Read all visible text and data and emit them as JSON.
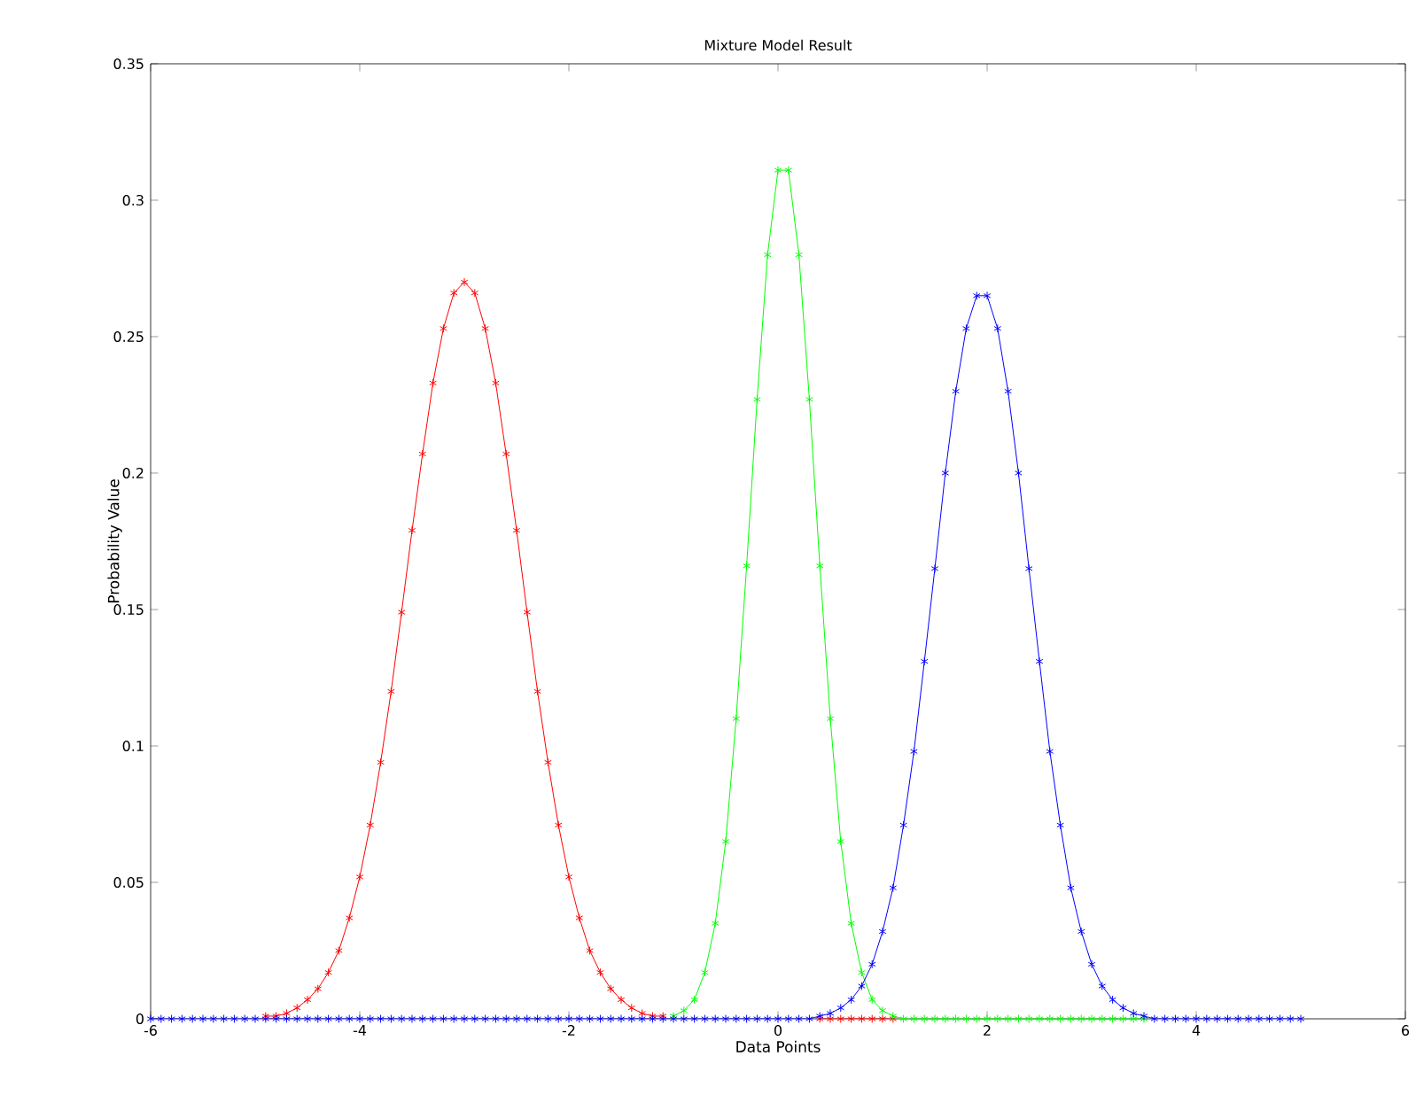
{
  "chart_data": {
    "type": "line",
    "title": "Mixture Model Result",
    "xlabel": "Data Points",
    "ylabel": "Probability Value",
    "x": [
      -6,
      -5.9,
      -5.8,
      -5.7,
      -5.6,
      -5.5,
      -5.4,
      -5.3,
      -5.2,
      -5.1,
      -5,
      -4.9,
      -4.8,
      -4.7,
      -4.6,
      -4.5,
      -4.4,
      -4.3,
      -4.2,
      -4.1,
      -4,
      -3.9,
      -3.8,
      -3.7,
      -3.6,
      -3.5,
      -3.4,
      -3.3,
      -3.2,
      -3.1,
      -3,
      -2.9,
      -2.8,
      -2.7,
      -2.6,
      -2.5,
      -2.4,
      -2.3,
      -2.2,
      -2.1,
      -2,
      -1.9,
      -1.8,
      -1.7,
      -1.6,
      -1.5,
      -1.4,
      -1.3,
      -1.2,
      -1.1,
      -1,
      -0.9,
      -0.8,
      -0.7,
      -0.6,
      -0.5,
      -0.4,
      -0.3,
      -0.2,
      -0.1,
      0,
      0.1,
      0.2,
      0.3,
      0.4,
      0.5,
      0.6,
      0.7,
      0.8,
      0.9,
      1,
      1.1,
      1.2,
      1.3,
      1.4,
      1.5,
      1.6,
      1.7,
      1.8,
      1.9,
      2,
      2.1,
      2.2,
      2.3,
      2.4,
      2.5,
      2.6,
      2.7,
      2.8,
      2.9,
      3,
      3.1,
      3.2,
      3.3,
      3.4,
      3.5,
      3.6,
      3.7,
      3.8,
      3.9,
      4,
      4.1,
      4.2,
      4.3,
      4.4,
      4.5,
      4.6,
      4.7,
      4.8,
      4.9,
      5
    ],
    "series": [
      {
        "color": "#ff0000",
        "values": [
          null,
          null,
          null,
          null,
          null,
          null,
          null,
          null,
          null,
          null,
          null,
          0.001,
          0.001,
          0.002,
          0.004,
          0.007,
          0.011,
          0.017,
          0.025,
          0.037,
          0.052,
          0.071,
          0.094,
          0.12,
          0.149,
          0.179,
          0.207,
          0.233,
          0.253,
          0.266,
          0.27,
          0.266,
          0.253,
          0.233,
          0.207,
          0.179,
          0.149,
          0.12,
          0.094,
          0.071,
          0.052,
          0.037,
          0.025,
          0.017,
          0.011,
          0.007,
          0.004,
          0.002,
          0.001,
          0.001,
          null,
          null,
          null,
          null,
          null,
          null,
          null,
          null,
          null,
          null,
          null,
          null,
          null,
          null,
          0,
          0,
          0,
          0,
          0,
          0,
          0,
          0,
          null,
          null,
          null,
          null,
          null,
          null,
          null,
          null,
          null,
          null,
          null,
          null,
          null,
          null,
          null,
          null,
          null,
          null,
          null,
          null,
          null,
          null,
          null,
          null,
          null,
          null,
          null,
          null,
          null,
          null,
          null,
          null,
          null,
          null,
          null,
          null,
          null,
          null,
          null
        ]
      },
      {
        "color": "#00ff00",
        "values": [
          null,
          null,
          null,
          null,
          null,
          null,
          null,
          null,
          null,
          null,
          null,
          null,
          null,
          null,
          null,
          null,
          null,
          null,
          null,
          null,
          null,
          null,
          null,
          null,
          null,
          null,
          null,
          null,
          null,
          null,
          null,
          null,
          null,
          null,
          null,
          null,
          null,
          null,
          null,
          null,
          null,
          null,
          null,
          null,
          null,
          null,
          null,
          null,
          null,
          null,
          0.001,
          0.003,
          0.007,
          0.017,
          0.035,
          0.065,
          0.11,
          0.166,
          0.227,
          0.28,
          0.311,
          0.311,
          0.28,
          0.227,
          0.166,
          0.11,
          0.065,
          0.035,
          0.017,
          0.007,
          0.003,
          0.001,
          0,
          0,
          0,
          0,
          0,
          0,
          0,
          0,
          0,
          0,
          0,
          0,
          0,
          0,
          0,
          0,
          0,
          0,
          0,
          0,
          0,
          0,
          0,
          0,
          null,
          null,
          null,
          null,
          null,
          null,
          null,
          null,
          null,
          null,
          null,
          null,
          null,
          null,
          null
        ]
      },
      {
        "color": "#0000ff",
        "values": [
          0,
          0,
          0,
          0,
          0,
          0,
          0,
          0,
          0,
          0,
          0,
          0,
          0,
          0,
          0,
          0,
          0,
          0,
          0,
          0,
          0,
          0,
          0,
          0,
          0,
          0,
          0,
          0,
          0,
          0,
          0,
          0,
          0,
          0,
          0,
          0,
          0,
          0,
          0,
          0,
          0,
          0,
          0,
          0,
          0,
          0,
          0,
          0,
          0,
          0,
          0,
          0,
          0,
          0,
          0,
          0,
          0,
          0,
          0,
          0,
          0,
          0,
          0,
          0,
          0.001,
          0.002,
          0.004,
          0.007,
          0.012,
          0.02,
          0.032,
          0.048,
          0.071,
          0.098,
          0.131,
          0.165,
          0.2,
          0.23,
          0.253,
          0.265,
          0.265,
          0.253,
          0.23,
          0.2,
          0.165,
          0.131,
          0.098,
          0.071,
          0.048,
          0.032,
          0.02,
          0.012,
          0.007,
          0.004,
          0.002,
          0.001,
          0,
          0,
          0,
          0,
          0,
          0,
          0,
          0,
          0,
          0,
          0,
          0,
          0,
          0,
          0
        ]
      }
    ],
    "xlim": [
      -6,
      6
    ],
    "xticks": [
      -6,
      -4,
      -2,
      0,
      2,
      4,
      6
    ],
    "ylim": [
      0,
      0.35
    ],
    "yticks": [
      0,
      0.05,
      0.1,
      0.15,
      0.2,
      0.25,
      0.3,
      0.35
    ],
    "grid": false,
    "marker": "cross",
    "line_style": "solid"
  }
}
